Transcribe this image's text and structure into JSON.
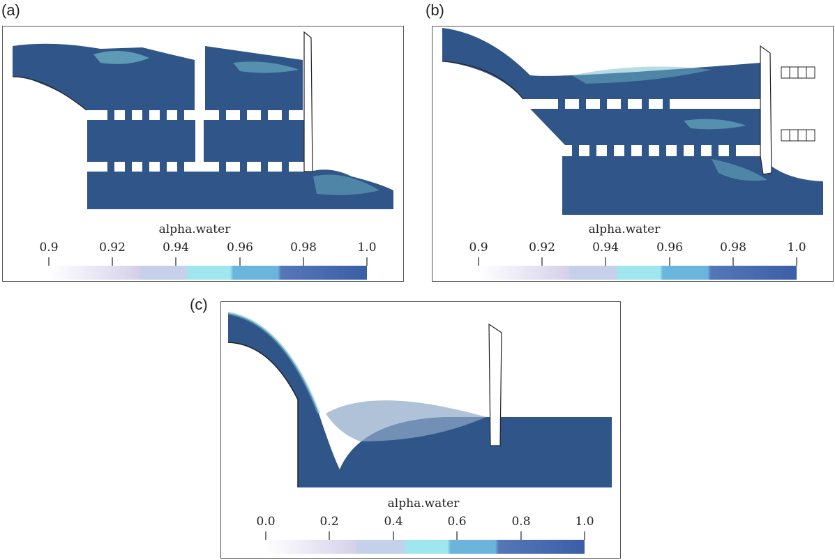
{
  "panels": [
    {
      "id": "a",
      "label": "(a)",
      "colorbar": {
        "title": "alpha.water",
        "ticks": [
          "0.9",
          "0.92",
          "0.94",
          "0.96",
          "0.98",
          "1.0"
        ]
      }
    },
    {
      "id": "b",
      "label": "(b)",
      "colorbar": {
        "title": "alpha.water",
        "ticks": [
          "0.9",
          "0.92",
          "0.94",
          "0.96",
          "0.98",
          "1.0"
        ]
      }
    },
    {
      "id": "c",
      "label": "(c)",
      "colorbar": {
        "title": "alpha.water",
        "ticks": [
          "0.0",
          "0.2",
          "0.4",
          "0.6",
          "0.8",
          "1.0"
        ]
      }
    }
  ],
  "colors": {
    "water": "#2f5589",
    "foam": "#6fb8c8",
    "colorbar_bands": [
      "#ffffff",
      "#d6d1ea",
      "#c5d0ea",
      "#9fe6ef",
      "#6bb4dc",
      "#5577b8",
      "#3a5fa6"
    ]
  }
}
